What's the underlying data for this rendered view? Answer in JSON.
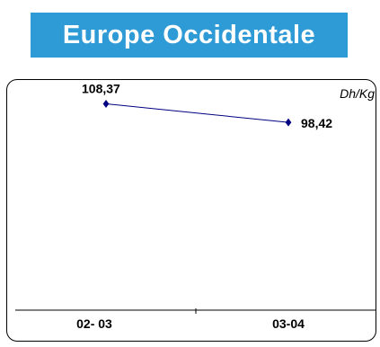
{
  "chart_data": {
    "type": "line",
    "title": "Europe Occidentale",
    "unit": "Dh/Kg",
    "categories": [
      "02- 03",
      "03-04"
    ],
    "series": [
      {
        "values": [
          108.37,
          98.42
        ],
        "value_labels": [
          "108,37",
          "98,42"
        ],
        "color": "#000080"
      }
    ],
    "grid": false,
    "legend": "none"
  }
}
